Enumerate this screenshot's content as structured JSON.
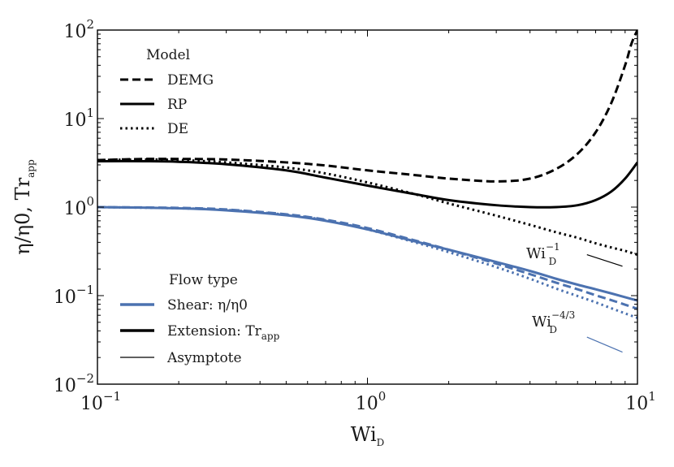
{
  "chart_data": {
    "type": "line",
    "xlabel": "Wi",
    "xlabel_sub": "D",
    "ylabel": "η/η0, Tr",
    "ylabel_sub": "app",
    "xscale": "log",
    "yscale": "log",
    "xlim": [
      0.1,
      10
    ],
    "ylim": [
      0.01,
      100
    ],
    "x_ticks": [
      {
        "value": 0.1,
        "base": "10",
        "exp": "−1"
      },
      {
        "value": 1,
        "base": "10",
        "exp": "0"
      },
      {
        "value": 10,
        "base": "10",
        "exp": "1"
      }
    ],
    "y_ticks": [
      {
        "value": 0.01,
        "base": "10",
        "exp": "−2"
      },
      {
        "value": 0.1,
        "base": "10",
        "exp": "−1"
      },
      {
        "value": 1,
        "base": "10",
        "exp": "0"
      },
      {
        "value": 10,
        "base": "10",
        "exp": "1"
      },
      {
        "value": 100,
        "base": "10",
        "exp": "2"
      }
    ],
    "grid": false,
    "colors": {
      "shear": "#4c72b0",
      "extension": "#000000"
    },
    "legend_model": {
      "title": "Model",
      "placement": "top-left",
      "entries": [
        {
          "label": "DEMG",
          "style": "dashed"
        },
        {
          "label": "RP",
          "style": "solid"
        },
        {
          "label": "DE",
          "style": "dotted"
        }
      ]
    },
    "legend_flow": {
      "title": "Flow type",
      "placement": "bottom-left",
      "entries": [
        {
          "label": "Shear: η/η0",
          "color": "#4c72b0",
          "style": "thick"
        },
        {
          "label": "Extension: Tr",
          "label_sub": "app",
          "color": "#000000",
          "style": "thick"
        },
        {
          "label": "Asymptote",
          "color": "#000000",
          "style": "thin"
        }
      ]
    },
    "annotations": [
      {
        "base": "Wi",
        "sub": "D",
        "sup": "−1"
      },
      {
        "base": "Wi",
        "sub": "D",
        "sup": "−4/3"
      }
    ],
    "series": [
      {
        "flow": "extension",
        "model": "DEMG",
        "style": "dashed",
        "color": "#000000",
        "x": [
          0.1,
          0.15,
          0.2,
          0.3,
          0.5,
          0.7,
          1.0,
          1.5,
          2.0,
          3.0,
          4.0,
          5.0,
          6.0,
          7.0,
          8.0,
          9.0,
          9.5,
          10.0
        ],
        "y": [
          3.4,
          3.5,
          3.5,
          3.45,
          3.2,
          2.95,
          2.6,
          2.3,
          2.1,
          1.95,
          2.1,
          2.7,
          4.0,
          7.0,
          15.0,
          40.0,
          70.0,
          100.0
        ]
      },
      {
        "flow": "extension",
        "model": "RP",
        "style": "solid",
        "color": "#000000",
        "x": [
          0.1,
          0.15,
          0.2,
          0.3,
          0.5,
          0.7,
          1.0,
          1.5,
          2.0,
          3.0,
          4.0,
          5.0,
          6.0,
          7.0,
          8.0,
          9.0,
          10.0
        ],
        "y": [
          3.3,
          3.3,
          3.25,
          3.05,
          2.6,
          2.15,
          1.75,
          1.4,
          1.2,
          1.05,
          1.0,
          1.0,
          1.05,
          1.2,
          1.5,
          2.1,
          3.2
        ]
      },
      {
        "flow": "extension",
        "model": "DE",
        "style": "dotted",
        "color": "#000000",
        "x": [
          0.1,
          0.15,
          0.2,
          0.3,
          0.5,
          0.7,
          1.0,
          1.5,
          2.0,
          3.0,
          4.0,
          5.0,
          6.0,
          7.0,
          8.0,
          9.0,
          10.0
        ],
        "y": [
          3.4,
          3.45,
          3.4,
          3.2,
          2.8,
          2.4,
          1.9,
          1.4,
          1.1,
          0.8,
          0.63,
          0.52,
          0.45,
          0.39,
          0.35,
          0.32,
          0.29
        ]
      },
      {
        "flow": "shear",
        "model": "DEMG",
        "style": "dashed",
        "color": "#4c72b0",
        "x": [
          0.1,
          0.2,
          0.3,
          0.5,
          0.7,
          1.0,
          1.5,
          2.0,
          3.0,
          4.0,
          5.0,
          6.0,
          7.0,
          8.0,
          9.0,
          10.0
        ],
        "y": [
          1.0,
          0.98,
          0.94,
          0.83,
          0.72,
          0.58,
          0.42,
          0.33,
          0.23,
          0.175,
          0.14,
          0.118,
          0.101,
          0.089,
          0.079,
          0.071
        ]
      },
      {
        "flow": "shear",
        "model": "RP",
        "style": "solid",
        "color": "#4c72b0",
        "x": [
          0.1,
          0.2,
          0.3,
          0.5,
          0.7,
          1.0,
          1.5,
          2.0,
          3.0,
          4.0,
          5.0,
          6.0,
          7.0,
          8.0,
          9.0,
          10.0
        ],
        "y": [
          1.0,
          0.97,
          0.92,
          0.81,
          0.7,
          0.56,
          0.41,
          0.33,
          0.24,
          0.19,
          0.155,
          0.133,
          0.118,
          0.106,
          0.096,
          0.088
        ]
      },
      {
        "flow": "shear",
        "model": "DE",
        "style": "dotted",
        "color": "#4c72b0",
        "x": [
          0.1,
          0.2,
          0.3,
          0.5,
          0.7,
          1.0,
          1.5,
          2.0,
          3.0,
          4.0,
          5.0,
          6.0,
          7.0,
          8.0,
          9.0,
          10.0
        ],
        "y": [
          1.0,
          0.97,
          0.93,
          0.82,
          0.71,
          0.56,
          0.4,
          0.31,
          0.21,
          0.155,
          0.12,
          0.099,
          0.084,
          0.072,
          0.063,
          0.056
        ]
      },
      {
        "flow": "extension",
        "model": "Asymptote",
        "style": "thin",
        "color": "#000000",
        "x": [
          6.5,
          8.8
        ],
        "y": [
          0.29,
          0.215
        ]
      },
      {
        "flow": "shear",
        "model": "Asymptote",
        "style": "thin",
        "color": "#4c72b0",
        "x": [
          6.5,
          8.8
        ],
        "y": [
          0.034,
          0.023
        ]
      }
    ]
  }
}
